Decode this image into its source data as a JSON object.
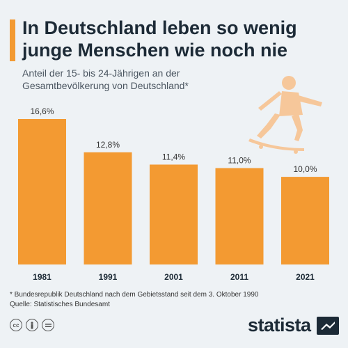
{
  "header": {
    "title": "In Deutschland leben so wenig junge Menschen wie noch nie",
    "subtitle": "Anteil der 15- bis 24-Jährigen an der Gesamtbevölkerung von Deutschland*"
  },
  "chart_data": {
    "type": "bar",
    "categories": [
      "1981",
      "1991",
      "2001",
      "2011",
      "2021"
    ],
    "values": [
      16.6,
      12.8,
      11.4,
      11.0,
      10.0
    ],
    "value_labels": [
      "16,6%",
      "12,8%",
      "11,4%",
      "11,0%",
      "10,0%"
    ],
    "title": "In Deutschland leben so wenig junge Menschen wie noch nie",
    "xlabel": "",
    "ylabel": "",
    "ylim": [
      0,
      16.6
    ],
    "grid": false,
    "colors": {
      "bar": "#f39a32",
      "accent": "#f39a32",
      "text": "#1c2a36"
    }
  },
  "footer": {
    "footnote": "* Bundesrepublik Deutschland nach dem Gebietsstand seit dem 3. Oktober 1990",
    "source": "Quelle: Statistisches Bundesamt",
    "brand": "statista",
    "icons": [
      "cc-icon",
      "person-icon",
      "equals-icon"
    ]
  }
}
